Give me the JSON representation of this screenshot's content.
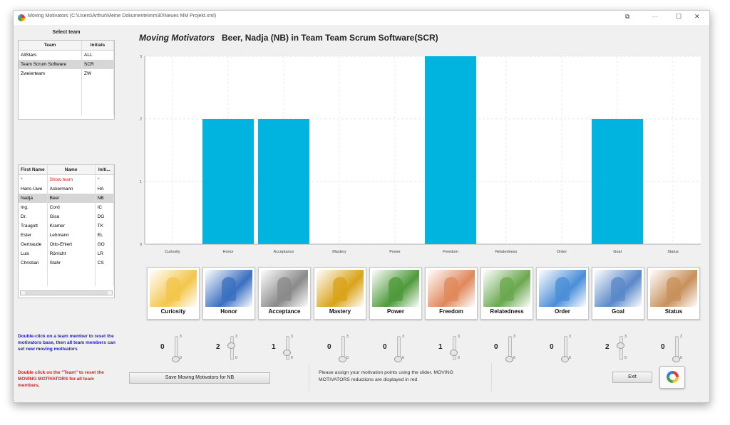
{
  "window": {
    "title": "Moving Motivators (C:\\Users\\Arthur\\Meine Dokumente\\mm30\\Neues MM Projekt.xml)",
    "controls": [
      "⧉",
      "—",
      "☐",
      "✕"
    ]
  },
  "teams": {
    "header": "Select team",
    "columns": [
      "Team",
      "Initials"
    ],
    "rows": [
      [
        "AllStars",
        "ALL"
      ],
      [
        "Team Scrum Software",
        "SCR"
      ],
      [
        "Zweierteam",
        "ZW"
      ]
    ],
    "selected_index": 1
  },
  "members": {
    "columns": [
      "First Name",
      "Name",
      "Initi..."
    ],
    "rows": [
      [
        "*",
        "Show team",
        "*"
      ],
      [
        "Hans-Uwe",
        "Ackermann",
        "HA"
      ],
      [
        "Nadja",
        "Beer",
        "NB"
      ],
      [
        "Ing.",
        "Cord",
        "IC"
      ],
      [
        "Dr.",
        "Gisa",
        "DG"
      ],
      [
        "Traugott",
        "Kramer",
        "TK"
      ],
      [
        "Ester",
        "Lehmann",
        "EL"
      ],
      [
        "Gertraude",
        "Otto-Ehlert",
        "GO"
      ],
      [
        "Luis",
        "Rörricht",
        "LR"
      ],
      [
        "Christian",
        "Stahr",
        "CS"
      ]
    ],
    "selected_index": 2,
    "highlight_color": "#e02020"
  },
  "notes": {
    "reset_member": "Double-click on a team member to reset the motivators base, then all team members can set new moving motivators",
    "reset_all": "Double click on the \"Team\" to reset the MOVING MOTIVATORS for all team members."
  },
  "heading": {
    "brand": "Moving Motivators",
    "subject": "Beer, Nadja (NB) in Team Team Scrum Software(SCR)"
  },
  "chart_data": {
    "type": "bar",
    "categories": [
      "Curiosity",
      "Honor",
      "Acceptance",
      "Mastery",
      "Power",
      "Freedom",
      "Relatedness",
      "Order",
      "Goal",
      "Status"
    ],
    "values": [
      0,
      2,
      2,
      0,
      0,
      3,
      0,
      0,
      2,
      0
    ],
    "ylim": [
      0,
      3
    ],
    "yticks": [
      0,
      1,
      2,
      3
    ],
    "grid": true,
    "color": "#00b4e0",
    "title": "",
    "xlabel": "",
    "ylabel": ""
  },
  "cards": [
    {
      "label": "Curiosity",
      "icon": "curiosity-image",
      "tint": "#f3c64a"
    },
    {
      "label": "Honor",
      "icon": "honor-image",
      "tint": "#3a6fc0"
    },
    {
      "label": "Acceptance",
      "icon": "acceptance-image",
      "tint": "#8a8a8a"
    },
    {
      "label": "Mastery",
      "icon": "mastery-image",
      "tint": "#d9a318"
    },
    {
      "label": "Power",
      "icon": "power-image",
      "tint": "#4e9a3a"
    },
    {
      "label": "Freedom",
      "icon": "freedom-image",
      "tint": "#e0885a"
    },
    {
      "label": "Relatedness",
      "icon": "relatedness-image",
      "tint": "#6aa84f"
    },
    {
      "label": "Order",
      "icon": "order-image",
      "tint": "#4a8ed8"
    },
    {
      "label": "Goal",
      "icon": "goal-image",
      "tint": "#5a88c8"
    },
    {
      "label": "Status",
      "icon": "status-image",
      "tint": "#c8905a"
    }
  ],
  "sliders": {
    "values": [
      0,
      2,
      1,
      0,
      0,
      1,
      0,
      0,
      2,
      0
    ],
    "max_label": "3",
    "min_label": "0",
    "max": 3
  },
  "bottom": {
    "save_label": "Save Moving Motivators for NB",
    "instruction": "Please assign your motivation points using the slider. MOVING MOTIVATORS reductions are displayed in red",
    "exit_label": "Exit",
    "logo_icon": "moving-motivators-logo"
  }
}
